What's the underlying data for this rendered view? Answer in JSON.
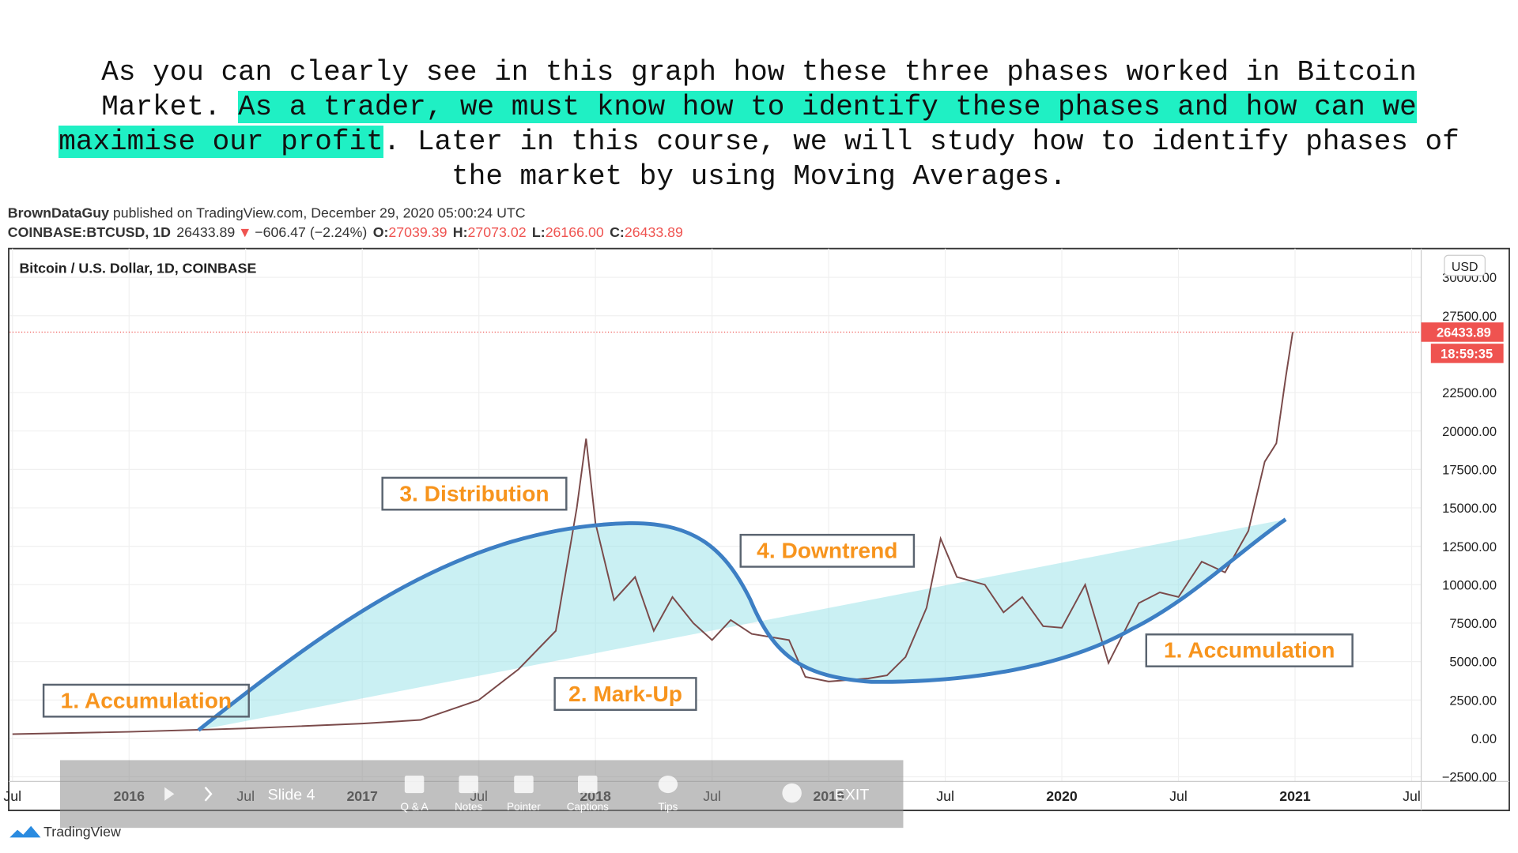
{
  "paragraph": {
    "before": "As you can clearly see in this graph how these three phases worked in Bitcoin Market.",
    "highlight": "As a trader, we must know how to identify these phases and how can we maximise our profit",
    "after": ". Later in this course, we will study how to identify phases of the market by using Moving Averages."
  },
  "header": {
    "author": "BrownDataGuy",
    "published": "published on TradingView.com, December 29, 2020 05:00:24 UTC",
    "symbol": "COINBASE:BTCUSD, 1D",
    "last": "26433.89",
    "arrow": "▼",
    "change": "−606.47 (−2.24%)",
    "ohlc": [
      {
        "key": "O:",
        "value": "27039.39"
      },
      {
        "key": "H:",
        "value": "27073.02"
      },
      {
        "key": "L:",
        "value": "26166.00"
      },
      {
        "key": "C:",
        "value": "26433.89"
      }
    ]
  },
  "chart_data": {
    "type": "line",
    "title": "Bitcoin / U.S. Dollar, 1D, COINBASE",
    "currency": "USD",
    "grid": true,
    "xlim": [
      2015.488,
      2021.541
    ],
    "xticks": [
      {
        "value": 2015.5,
        "label": "Jul"
      },
      2016,
      {
        "value": 2016.5,
        "label": "Jul"
      },
      2017,
      {
        "value": 2017.5,
        "label": "Jul"
      },
      2018,
      {
        "value": 2018.5,
        "label": "Jul"
      },
      2019,
      {
        "value": 2019.5,
        "label": "Jul"
      },
      2020,
      {
        "value": 2020.5,
        "label": "Jul"
      },
      2021,
      {
        "value": 2021.5,
        "label": "Jul"
      }
    ],
    "ylim": [
      -2800,
      31870
    ],
    "yticks": [
      {
        "value": -2500,
        "label": "−2500.00"
      },
      {
        "value": 0,
        "label": "0.00"
      },
      {
        "value": 2500,
        "label": "2500.00"
      },
      {
        "value": 5000,
        "label": "5000.00"
      },
      {
        "value": 7500,
        "label": "7500.00"
      },
      {
        "value": 10000,
        "label": "10000.00"
      },
      {
        "value": 12500,
        "label": "12500.00"
      },
      {
        "value": 15000,
        "label": "15000.00"
      },
      {
        "value": 17500,
        "label": "17500.00"
      },
      {
        "value": 20000,
        "label": "20000.00"
      },
      {
        "value": 22500,
        "label": "22500.00"
      },
      {
        "value": 27500,
        "label": "27500.00"
      },
      {
        "value": 30000,
        "label": "30000.00"
      }
    ],
    "series": [
      {
        "color": "#7a4a4a",
        "x": [
          2015.5,
          2016.0,
          2016.5,
          2017.0,
          2017.25,
          2017.5,
          2017.67,
          2017.83,
          2017.92,
          2017.96,
          2018.0,
          2018.08,
          2018.17,
          2018.25,
          2018.33,
          2018.42,
          2018.5,
          2018.58,
          2018.67,
          2018.83,
          2018.9,
          2019.0,
          2019.17,
          2019.25,
          2019.33,
          2019.42,
          2019.48,
          2019.55,
          2019.67,
          2019.75,
          2019.83,
          2019.92,
          2020.0,
          2020.1,
          2020.2,
          2020.33,
          2020.42,
          2020.5,
          2020.6,
          2020.7,
          2020.8,
          2020.87,
          2020.92,
          2020.96,
          2020.99
        ],
        "values": [
          280,
          430,
          650,
          960,
          1200,
          2500,
          4500,
          7000,
          15000,
          19500,
          14000,
          9000,
          10500,
          7000,
          9200,
          7500,
          6400,
          7700,
          6800,
          6400,
          4000,
          3700,
          3900,
          4100,
          5300,
          8500,
          13000,
          10500,
          10000,
          8200,
          9200,
          7300,
          7200,
          10000,
          4900,
          8800,
          9500,
          9200,
          11500,
          10800,
          13500,
          18000,
          19200,
          23500,
          26433.89
        ]
      }
    ],
    "last_price": 26433.89,
    "countdown": "18:59:35",
    "annotations": [
      "1. Accumulation",
      "3. Distribution",
      "4. Downtrend",
      "2. Mark-Up",
      "1. Accumulation"
    ]
  },
  "toolbar": {
    "slide": "Slide 4",
    "items": [
      "Q & A",
      "Notes",
      "Pointer",
      "Captions",
      "Tips"
    ],
    "exit": "EXIT"
  },
  "logo": "TradingView"
}
